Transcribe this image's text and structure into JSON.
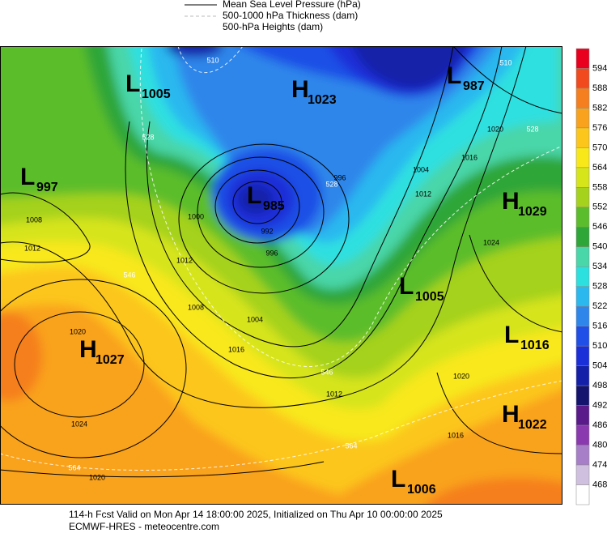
{
  "legend": [
    "Mean Sea Level Pressure (hPa)",
    "500-1000 hPa Thickness (dam)",
    "500-hPa Heights (dam)"
  ],
  "colorbar": {
    "labels": [
      594,
      588,
      582,
      576,
      570,
      564,
      558,
      552,
      546,
      540,
      534,
      528,
      522,
      516,
      510,
      504,
      498,
      492,
      486,
      480,
      474,
      468
    ],
    "colors": [
      "#e8001e",
      "#f04a1e",
      "#f57f1f",
      "#f9a21d",
      "#fcc61a",
      "#f8e81a",
      "#d6e41a",
      "#a5d21c",
      "#5cbd2c",
      "#2ea638",
      "#49d6a8",
      "#2de0e0",
      "#2ab8ef",
      "#2f86ea",
      "#1f4fe6",
      "#1a2fd8",
      "#1420a8",
      "#14146e",
      "#5a1a8a",
      "#8a3aae",
      "#a77fc8",
      "#d0c0e0",
      "#ffffff"
    ]
  },
  "centers": [
    {
      "letter": "L",
      "value": 1005
    },
    {
      "letter": "H",
      "value": 1023
    },
    {
      "letter": "L",
      "value": 987
    },
    {
      "letter": "L",
      "value": 997
    },
    {
      "letter": "L",
      "value": 985
    },
    {
      "letter": "H",
      "value": 1029
    },
    {
      "letter": "L",
      "value": 1005
    },
    {
      "letter": "H",
      "value": 1027
    },
    {
      "letter": "L",
      "value": 1016
    },
    {
      "letter": "H",
      "value": 1022
    },
    {
      "letter": "L",
      "value": 1006
    }
  ],
  "pressure_labels": [
    1000,
    992,
    996,
    996,
    1012,
    1008,
    1004,
    1016,
    1020,
    1008,
    1012,
    1024,
    1020,
    1012,
    1020,
    1016,
    1004,
    1016,
    1020,
    1024,
    1012
  ],
  "thickness_labels": [
    510,
    510,
    528,
    528,
    528,
    546,
    546,
    564,
    564
  ],
  "footer": [
    "114-h Fcst Valid on Mon Apr 14 18:00:00 2025, Initialized on Thu Apr 10 00:00:00 2025",
    "ECMWF-HRES  - meteocentre.com"
  ]
}
